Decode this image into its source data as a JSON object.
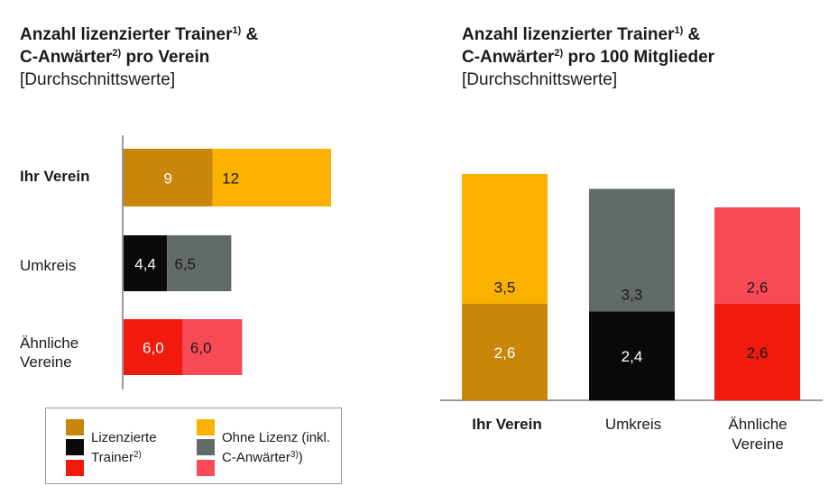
{
  "left_title": {
    "line1": "Anzahl lizenzierter Trainer",
    "line1_sup": "1)",
    "line1_tail": " &",
    "line2": "C-Anwärter",
    "line2_sup": "2)",
    "line2_tail": " pro Verein",
    "subtitle": "[Durchschnittswerte]"
  },
  "right_title": {
    "line1": "Anzahl lizenzierter Trainer",
    "line1_sup": "1)",
    "line1_tail": " &",
    "line2": "C-Anwärter",
    "line2_sup": "2)",
    "line2_tail": " pro 100 Mitglieder",
    "subtitle": "[Durchschnittswerte]"
  },
  "legend": {
    "licensed_line1": "Lizenzierte",
    "licensed_line2": "Trainer",
    "licensed_sup": "2)",
    "unlicensed_line1": "Ohne Lizenz (inkl.",
    "unlicensed_line2": "C-Anwärter",
    "unlicensed_sup": "3)",
    "unlicensed_tail": ")"
  },
  "chart_data": [
    {
      "type": "bar",
      "orientation": "horizontal",
      "stacked": true,
      "categories": [
        "Ihr Verein",
        "Umkreis",
        "Ähnliche Vereine"
      ],
      "category_lines": [
        [
          "Ihr Verein"
        ],
        [
          "Umkreis"
        ],
        [
          "Ähnliche",
          "Vereine"
        ]
      ],
      "series": [
        {
          "name": "Lizenzierte Trainer",
          "values": [
            9,
            4.4,
            6.0
          ],
          "labels": [
            "9",
            "4,4",
            "6,0"
          ]
        },
        {
          "name": "Ohne Lizenz (inkl. C-Anwärter)",
          "values": [
            12,
            6.5,
            6.0
          ],
          "labels": [
            "12",
            "6,5",
            "6,0"
          ]
        }
      ],
      "colors": [
        [
          "#c8860a",
          "#fbb100"
        ],
        [
          "#0a0a0a",
          "#626a6a"
        ],
        [
          "#f01b0e",
          "#f84a55"
        ]
      ],
      "label_colors": [
        [
          "#ffffff",
          "#1a1a1a"
        ],
        [
          "#ffffff",
          "#1a1a1a"
        ],
        [
          "#ffffff",
          "#1a1a1a"
        ]
      ],
      "xlim": [
        0,
        21
      ]
    },
    {
      "type": "bar",
      "orientation": "vertical",
      "stacked": true,
      "categories": [
        "Ihr Verein",
        "Umkreis",
        "Ähnliche Vereine"
      ],
      "category_lines": [
        [
          "Ihr Verein"
        ],
        [
          "Umkreis"
        ],
        [
          "Ähnliche",
          "Vereine"
        ]
      ],
      "series": [
        {
          "name": "Lizenzierte Trainer",
          "values": [
            2.6,
            2.4,
            2.6
          ],
          "labels": [
            "2,6",
            "2,4",
            "2,6"
          ]
        },
        {
          "name": "Ohne Lizenz (inkl. C-Anwärter)",
          "values": [
            3.5,
            3.3,
            2.6
          ],
          "labels": [
            "3,5",
            "3,3",
            "2,6"
          ]
        }
      ],
      "colors": [
        [
          "#c8860a",
          "#fbb100"
        ],
        [
          "#0a0a0a",
          "#626a6a"
        ],
        [
          "#f01b0e",
          "#f84a55"
        ]
      ],
      "label_colors": [
        [
          "#ffffff",
          "#1a1a1a"
        ],
        [
          "#ffffff",
          "#1a1a1a"
        ],
        [
          "#1a1a1a",
          "#1a1a1a"
        ]
      ],
      "ylim": [
        0,
        6.1
      ]
    }
  ]
}
